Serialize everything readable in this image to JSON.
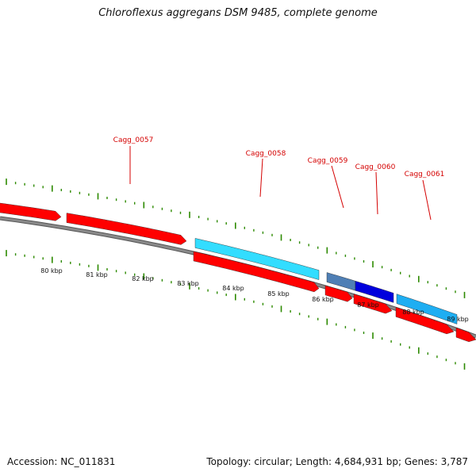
{
  "title": "Chloroflexus aggregans DSM 9485, complete genome",
  "footer": {
    "accession": "Accession: NC_011831",
    "summary": "Topology: circular; Length: 4,684,931 bp; Genes: 3,787"
  },
  "colors": {
    "background": "#ffffff",
    "backbone": "#8a8a8a",
    "cds_forward": "#ff0000",
    "feature_cyan": "#33ddff",
    "feature_steelblue": "#4f7fb5",
    "feature_blue": "#0000dd",
    "feature_skyblue": "#1eaef2",
    "tick": "#2d8a00",
    "label_red": "#d40000"
  },
  "kbp_labels": [
    "80 kbp",
    "81 kbp",
    "82 kbp",
    "83 kbp",
    "84 kbp",
    "85 kbp",
    "86 kbp",
    "87 kbp",
    "88 kbp",
    "89 kbp"
  ],
  "gene_labels": [
    "Cagg_0057",
    "Cagg_0058",
    "Cagg_0059",
    "Cagg_0060",
    "Cagg_0061"
  ]
}
